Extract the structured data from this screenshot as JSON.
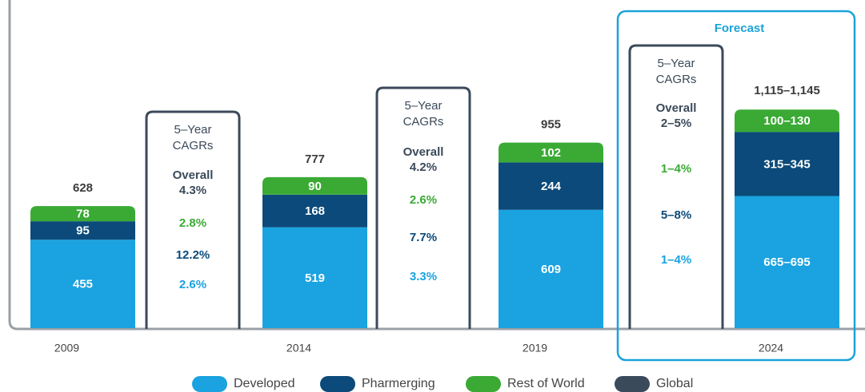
{
  "chart_data": {
    "type": "stacked_bar",
    "categories": [
      "2009",
      "2014",
      "2019",
      "2024"
    ],
    "series": [
      {
        "name": "Developed",
        "color": "#1aa3e0",
        "values": [
          455,
          519,
          609,
          680
        ],
        "value_labels": [
          "455",
          "519",
          "609",
          "665–695"
        ]
      },
      {
        "name": "Pharmerging",
        "color": "#0b4a7a",
        "values": [
          95,
          168,
          244,
          330
        ],
        "value_labels": [
          "95",
          "168",
          "244",
          "315–345"
        ]
      },
      {
        "name": "Rest of World",
        "color": "#3aaa35",
        "values": [
          78,
          90,
          102,
          115
        ],
        "value_labels": [
          "78",
          "90",
          "102",
          "100–130"
        ]
      }
    ],
    "totals": [
      628,
      777,
      955,
      1130
    ],
    "total_labels": [
      "628",
      "777",
      "955",
      "1,115–1,145"
    ],
    "global": {
      "name": "Global",
      "color": "#3b4a5a"
    },
    "forecast_label": "Forecast",
    "forecast_color": "#1aa3d9",
    "cagr_title": [
      "5–Year",
      "CAGRs"
    ],
    "overall_label": "Overall",
    "cagrs": [
      {
        "overall": "4.3%",
        "rates": [
          "2.6%",
          "12.2%",
          "2.8%"
        ]
      },
      {
        "overall": "4.2%",
        "rates": [
          "3.3%",
          "7.7%",
          "2.6%"
        ]
      },
      {
        "overall": "2–5%",
        "rates": [
          "1–4%",
          "5–8%",
          "1–4%"
        ]
      }
    ]
  }
}
